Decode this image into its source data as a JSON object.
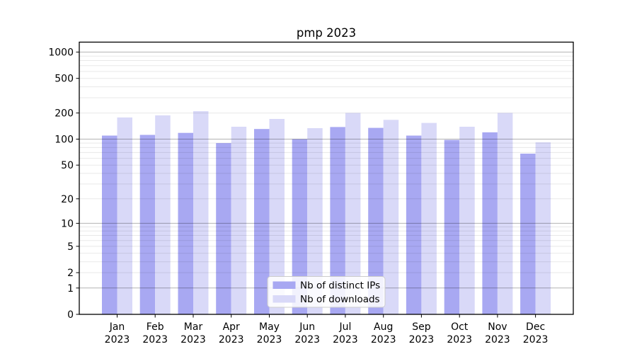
{
  "figure": {
    "background": "#ffffff"
  },
  "chart_data": {
    "type": "bar",
    "title": "pmp 2023",
    "categories": [
      "Jan",
      "Feb",
      "Mar",
      "Apr",
      "May",
      "Jun",
      "Jul",
      "Aug",
      "Sep",
      "Oct",
      "Nov",
      "Dec"
    ],
    "tick_year": "2023",
    "series": [
      {
        "name": "Nb of distinct IPs",
        "color": "#a8a8f2",
        "values": [
          110,
          112,
          118,
          90,
          131,
          100,
          138,
          135,
          110,
          98,
          120,
          68
        ]
      },
      {
        "name": "Nb of downloads",
        "color": "#d9d9f8",
        "values": [
          178,
          188,
          210,
          139,
          171,
          134,
          200,
          167,
          154,
          139,
          200,
          92
        ]
      }
    ],
    "yscale": "log1p",
    "ylim": [
      0,
      1300
    ],
    "y_ticks": [
      1000,
      500,
      200,
      100,
      50,
      20,
      10,
      5,
      2,
      1,
      0
    ],
    "major_grid_values": [
      1,
      10,
      100,
      1000
    ],
    "minor_grid_values": [
      2,
      3,
      4,
      5,
      6,
      7,
      8,
      9,
      20,
      30,
      40,
      50,
      60,
      70,
      80,
      90,
      200,
      300,
      400,
      500,
      600,
      700,
      800,
      900
    ],
    "grid": "on",
    "legend_position": "lower center",
    "colors": {
      "axis": "#000000",
      "major_grid": "rgba(0,0,0,0.30)",
      "minor_grid": "rgba(0,0,0,0.09)",
      "legend_border": "#cccccc",
      "legend_background": "#ffffff"
    }
  }
}
